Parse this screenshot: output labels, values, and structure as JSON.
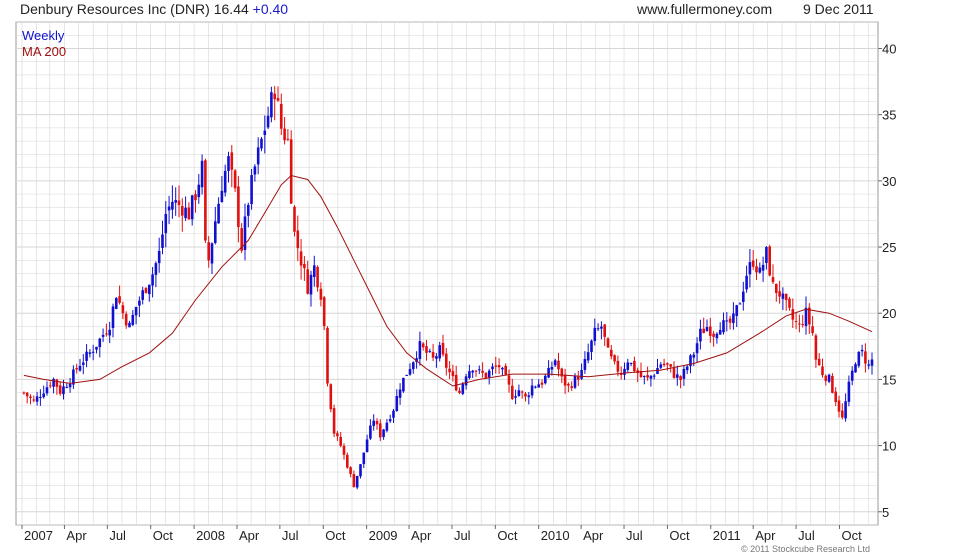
{
  "header": {
    "stock": "Denbury Resources Inc (DNR)",
    "price": "16.44",
    "change": "+0.40",
    "site": "www.fullermoney.com",
    "date": "9 Dec 2011"
  },
  "copyright": "© 2011 Stockcube Research Ltd",
  "colors": {
    "up": "#1010d0",
    "down": "#e01010",
    "ma": "#a01010",
    "grid": "#d6d6d6"
  },
  "chart_data": {
    "type": "candlestick",
    "timeframe": "Weekly",
    "legend": [
      {
        "label": "Weekly",
        "color": "#1010d0"
      },
      {
        "label": "MA 200",
        "color": "#a01010"
      }
    ],
    "y_axis": {
      "position": "right",
      "ticks": [
        5,
        10,
        15,
        20,
        25,
        30,
        35,
        40
      ],
      "ylim": [
        4,
        42
      ]
    },
    "x_axis": {
      "start": "2007-01-01",
      "end": "2011-12-09",
      "ticks": [
        {
          "label": "2007",
          "date": "2007-01-01"
        },
        {
          "label": "Apr",
          "date": "2007-04-01"
        },
        {
          "label": "Jul",
          "date": "2007-07-01"
        },
        {
          "label": "Oct",
          "date": "2007-10-01"
        },
        {
          "label": "2008",
          "date": "2008-01-01"
        },
        {
          "label": "Apr",
          "date": "2008-04-01"
        },
        {
          "label": "Jul",
          "date": "2008-07-01"
        },
        {
          "label": "Oct",
          "date": "2008-10-01"
        },
        {
          "label": "2009",
          "date": "2009-01-01"
        },
        {
          "label": "Apr",
          "date": "2009-04-01"
        },
        {
          "label": "Jul",
          "date": "2009-07-01"
        },
        {
          "label": "Oct",
          "date": "2009-10-01"
        },
        {
          "label": "2010",
          "date": "2010-01-01"
        },
        {
          "label": "Apr",
          "date": "2010-04-01"
        },
        {
          "label": "Jul",
          "date": "2010-07-01"
        },
        {
          "label": "Oct",
          "date": "2010-10-01"
        },
        {
          "label": "2011",
          "date": "2011-01-01"
        },
        {
          "label": "Apr",
          "date": "2011-04-01"
        },
        {
          "label": "Jul",
          "date": "2011-07-01"
        },
        {
          "label": "Oct",
          "date": "2011-10-01"
        }
      ]
    },
    "price_path": [
      [
        "2007-01-05",
        14.0
      ],
      [
        "2007-01-26",
        13.3
      ],
      [
        "2007-02-16",
        14.2
      ],
      [
        "2007-03-09",
        15.0
      ],
      [
        "2007-03-23",
        14.1
      ],
      [
        "2007-04-13",
        15.0
      ],
      [
        "2007-05-04",
        16.2
      ],
      [
        "2007-05-25",
        17.0
      ],
      [
        "2007-06-15",
        18.0
      ],
      [
        "2007-07-06",
        19.2
      ],
      [
        "2007-07-20",
        21.5
      ],
      [
        "2007-08-03",
        20.0
      ],
      [
        "2007-08-17",
        19.0
      ],
      [
        "2007-08-31",
        20.5
      ],
      [
        "2007-09-14",
        21.5
      ],
      [
        "2007-10-05",
        23.0
      ],
      [
        "2007-10-19",
        24.5
      ],
      [
        "2007-11-02",
        27.5
      ],
      [
        "2007-11-16",
        28.5
      ],
      [
        "2007-12-07",
        28.0
      ],
      [
        "2007-12-21",
        27.5
      ],
      [
        "2008-01-04",
        29.0
      ],
      [
        "2008-01-18",
        31.0
      ],
      [
        "2008-01-25",
        25.0
      ],
      [
        "2008-02-01",
        24.0
      ],
      [
        "2008-02-15",
        27.0
      ],
      [
        "2008-03-01",
        30.0
      ],
      [
        "2008-03-14",
        31.5
      ],
      [
        "2008-03-28",
        29.0
      ],
      [
        "2008-04-11",
        25.0
      ],
      [
        "2008-04-25",
        28.5
      ],
      [
        "2008-05-09",
        31.0
      ],
      [
        "2008-05-23",
        33.0
      ],
      [
        "2008-06-06",
        35.0
      ],
      [
        "2008-06-20",
        37.0
      ],
      [
        "2008-07-04",
        34.0
      ],
      [
        "2008-07-18",
        33.0
      ],
      [
        "2008-07-25",
        29.0
      ],
      [
        "2008-08-01",
        26.0
      ],
      [
        "2008-08-15",
        24.0
      ],
      [
        "2008-08-29",
        22.0
      ],
      [
        "2008-09-12",
        23.5
      ],
      [
        "2008-09-26",
        21.5
      ],
      [
        "2008-10-03",
        19.0
      ],
      [
        "2008-10-10",
        15.0
      ],
      [
        "2008-10-24",
        11.0
      ],
      [
        "2008-11-07",
        10.0
      ],
      [
        "2008-11-21",
        8.5
      ],
      [
        "2008-12-05",
        7.0
      ],
      [
        "2008-12-19",
        8.5
      ],
      [
        "2009-01-02",
        10.5
      ],
      [
        "2009-01-16",
        12.0
      ],
      [
        "2009-01-30",
        10.8
      ],
      [
        "2009-02-13",
        11.8
      ],
      [
        "2009-02-27",
        12.8
      ],
      [
        "2009-03-13",
        14.5
      ],
      [
        "2009-03-27",
        15.5
      ],
      [
        "2009-04-10",
        16.5
      ],
      [
        "2009-04-24",
        17.5
      ],
      [
        "2009-05-08",
        17.0
      ],
      [
        "2009-05-22",
        16.5
      ],
      [
        "2009-06-05",
        17.2
      ],
      [
        "2009-06-19",
        16.0
      ],
      [
        "2009-07-03",
        15.0
      ],
      [
        "2009-07-17",
        14.0
      ],
      [
        "2009-07-31",
        15.5
      ],
      [
        "2009-08-14",
        16.0
      ],
      [
        "2009-08-28",
        15.5
      ],
      [
        "2009-09-11",
        15.3
      ],
      [
        "2009-09-25",
        15.8
      ],
      [
        "2009-10-09",
        16.0
      ],
      [
        "2009-10-23",
        15.0
      ],
      [
        "2009-11-06",
        13.8
      ],
      [
        "2009-11-20",
        14.2
      ],
      [
        "2009-12-04",
        13.6
      ],
      [
        "2009-12-18",
        14.5
      ],
      [
        "2010-01-08",
        14.8
      ],
      [
        "2010-01-22",
        15.5
      ],
      [
        "2010-02-05",
        16.5
      ],
      [
        "2010-02-19",
        15.0
      ],
      [
        "2010-03-05",
        14.4
      ],
      [
        "2010-03-19",
        15.0
      ],
      [
        "2010-04-02",
        15.5
      ],
      [
        "2010-04-16",
        17.0
      ],
      [
        "2010-04-30",
        18.5
      ],
      [
        "2010-05-14",
        19.0
      ],
      [
        "2010-05-28",
        17.0
      ],
      [
        "2010-06-11",
        16.0
      ],
      [
        "2010-06-25",
        15.5
      ],
      [
        "2010-07-09",
        16.5
      ],
      [
        "2010-07-23",
        15.8
      ],
      [
        "2010-08-06",
        15.2
      ],
      [
        "2010-08-20",
        15.0
      ],
      [
        "2010-09-03",
        15.5
      ],
      [
        "2010-09-17",
        16.2
      ],
      [
        "2010-10-01",
        16.0
      ],
      [
        "2010-10-15",
        15.4
      ],
      [
        "2010-10-29",
        15.0
      ],
      [
        "2010-11-12",
        16.0
      ],
      [
        "2010-11-26",
        17.0
      ],
      [
        "2010-12-10",
        18.5
      ],
      [
        "2010-12-24",
        19.0
      ],
      [
        "2011-01-07",
        18.5
      ],
      [
        "2011-01-21",
        19.2
      ],
      [
        "2011-02-04",
        19.0
      ],
      [
        "2011-02-18",
        19.5
      ],
      [
        "2011-03-04",
        21.0
      ],
      [
        "2011-03-18",
        23.0
      ],
      [
        "2011-04-01",
        24.0
      ],
      [
        "2011-04-15",
        23.0
      ],
      [
        "2011-04-29",
        24.5
      ],
      [
        "2011-05-13",
        22.0
      ],
      [
        "2011-05-27",
        21.5
      ],
      [
        "2011-06-10",
        20.5
      ],
      [
        "2011-06-24",
        19.5
      ],
      [
        "2011-07-08",
        19.0
      ],
      [
        "2011-07-22",
        20.0
      ],
      [
        "2011-08-05",
        18.5
      ],
      [
        "2011-08-12",
        16.5
      ],
      [
        "2011-08-26",
        15.5
      ],
      [
        "2011-09-09",
        15.0
      ],
      [
        "2011-09-23",
        13.5
      ],
      [
        "2011-10-07",
        12.0
      ],
      [
        "2011-10-21",
        14.5
      ],
      [
        "2011-11-04",
        16.5
      ],
      [
        "2011-11-18",
        17.0
      ],
      [
        "2011-12-02",
        16.0
      ],
      [
        "2011-12-09",
        16.44
      ]
    ],
    "ma_200": [
      [
        "2007-01-05",
        15.3
      ],
      [
        "2007-02-16",
        15.0
      ],
      [
        "2007-04-13",
        14.7
      ],
      [
        "2007-06-15",
        15.0
      ],
      [
        "2007-08-03",
        16.0
      ],
      [
        "2007-09-28",
        17.0
      ],
      [
        "2007-11-16",
        18.5
      ],
      [
        "2008-01-04",
        21.0
      ],
      [
        "2008-02-29",
        23.5
      ],
      [
        "2008-04-25",
        25.5
      ],
      [
        "2008-06-06",
        28.0
      ],
      [
        "2008-07-04",
        29.7
      ],
      [
        "2008-07-25",
        30.4
      ],
      [
        "2008-08-29",
        30.1
      ],
      [
        "2008-09-26",
        28.8
      ],
      [
        "2008-10-31",
        26.5
      ],
      [
        "2008-12-05",
        24.0
      ],
      [
        "2009-01-09",
        21.5
      ],
      [
        "2009-02-13",
        19.0
      ],
      [
        "2009-03-27",
        17.0
      ],
      [
        "2009-05-08",
        15.8
      ],
      [
        "2009-07-03",
        14.5
      ],
      [
        "2009-08-28",
        15.0
      ],
      [
        "2009-11-06",
        15.4
      ],
      [
        "2010-01-22",
        15.4
      ],
      [
        "2010-04-16",
        15.2
      ],
      [
        "2010-07-09",
        15.5
      ],
      [
        "2010-09-17",
        15.7
      ],
      [
        "2010-11-26",
        16.2
      ],
      [
        "2011-02-04",
        17.0
      ],
      [
        "2011-04-15",
        18.5
      ],
      [
        "2011-06-10",
        19.8
      ],
      [
        "2011-07-22",
        20.3
      ],
      [
        "2011-09-09",
        20.0
      ],
      [
        "2011-10-21",
        19.4
      ],
      [
        "2011-12-09",
        18.6
      ]
    ]
  }
}
